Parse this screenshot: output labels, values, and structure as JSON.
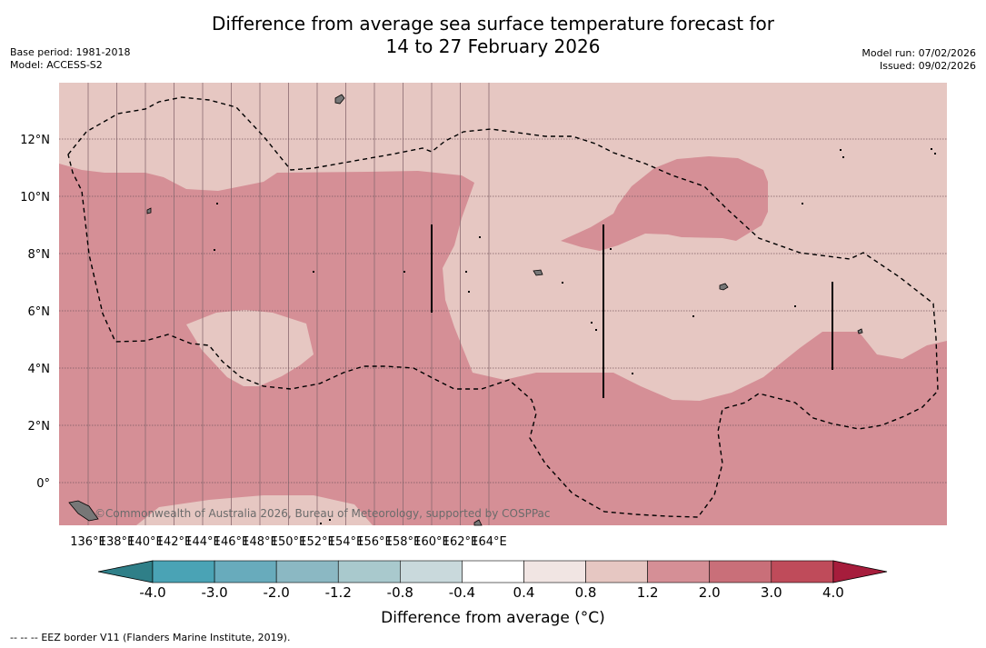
{
  "header": {
    "title_line1": "Difference from average sea surface temperature forecast for",
    "title_line2": "14 to 27 February 2026",
    "base_period": "Base period: 1981-2018",
    "model": "Model: ACCESS-S2",
    "model_run": "Model run: 07/02/2026",
    "issued": "Issued: 09/02/2026"
  },
  "map": {
    "lon_labels": [
      "136°E",
      "138°E",
      "140°E",
      "142°E",
      "144°E",
      "146°E",
      "148°E",
      "150°E",
      "152°E",
      "154°E",
      "156°E",
      "158°E",
      "160°E",
      "162°E",
      "164°E"
    ],
    "lat_labels": [
      "12°N",
      "10°N",
      "8°N",
      "6°N",
      "4°N",
      "2°N",
      "0°"
    ],
    "watermark": "©Commonwealth of Australia 2026, Bureau of Meteorology, supported by COSPPac",
    "colors": {
      "anomaly_0_4_to_0_8": "#efe0dd",
      "anomaly_0_8_to_1_2": "#e6c7c2",
      "anomaly_1_2_to_2_0": "#d58f96"
    }
  },
  "colorbar": {
    "labels": [
      "-4.0",
      "-3.0",
      "-2.0",
      "-1.2",
      "-0.8",
      "-0.4",
      "0.4",
      "0.8",
      "1.2",
      "2.0",
      "3.0",
      "4.0"
    ],
    "colors": [
      "#2f7f88",
      "#4aa3b5",
      "#68abbc",
      "#8bb8c3",
      "#a9c9cd",
      "#c9d9dc",
      "#ffffff",
      "#f1e5e3",
      "#e6c7c2",
      "#d58f96",
      "#c96f79",
      "#bf4b5a",
      "#a61d3c"
    ],
    "title": "Difference from average (°C)"
  },
  "legend": {
    "eez_symbol": "--  --  --",
    "eez_text": "EEZ border V11 (Flanders Marine Institute, 2019)."
  }
}
